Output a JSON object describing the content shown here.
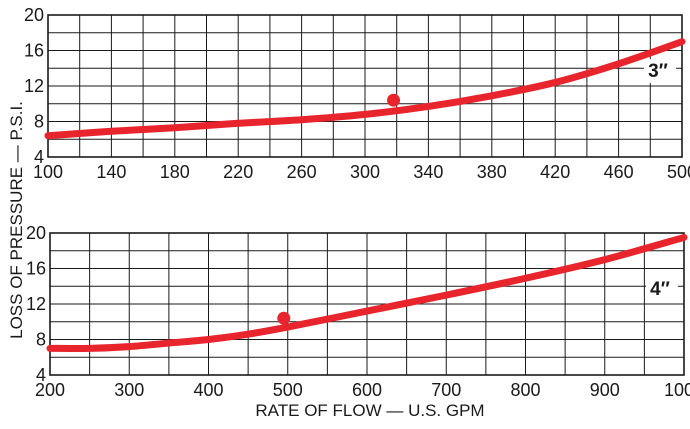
{
  "y_axis_label": "LOSS OF PRESSURE — P.S.I.",
  "x_axis_label": "RATE OF FLOW — U.S. GPM",
  "colors": {
    "curve": "#e8242c",
    "grid": "#1a1a1a",
    "text": "#1a1a1a",
    "background": "#ffffff"
  },
  "chart_data": [
    {
      "type": "line",
      "panel_label": "3″",
      "xlim": [
        100,
        500
      ],
      "ylim": [
        4,
        20
      ],
      "x_ticks": [
        100,
        140,
        180,
        220,
        260,
        300,
        340,
        380,
        420,
        460,
        500
      ],
      "y_ticks": [
        4,
        8,
        12,
        16,
        20
      ],
      "grid": true,
      "series": [
        {
          "x": [
            100,
            140,
            180,
            220,
            260,
            300,
            340,
            380,
            420,
            460,
            500
          ],
          "y": [
            6.4,
            6.9,
            7.3,
            7.8,
            8.2,
            8.8,
            9.7,
            10.9,
            12.4,
            14.5,
            17.0
          ]
        }
      ],
      "points": [
        {
          "x": 318,
          "y": 10.4
        }
      ]
    },
    {
      "type": "line",
      "panel_label": "4″",
      "xlim": [
        200,
        1000
      ],
      "ylim": [
        4,
        20
      ],
      "x_ticks": [
        200,
        300,
        400,
        500,
        600,
        700,
        800,
        900,
        1000
      ],
      "y_ticks": [
        4,
        8,
        12,
        16,
        20
      ],
      "grid": true,
      "series": [
        {
          "x": [
            200,
            250,
            300,
            350,
            400,
            450,
            500,
            600,
            700,
            800,
            900,
            1000
          ],
          "y": [
            7.0,
            7.0,
            7.2,
            7.6,
            8.0,
            8.6,
            9.4,
            11.2,
            13.0,
            14.9,
            17.0,
            19.5
          ]
        }
      ],
      "points": [
        {
          "x": 495,
          "y": 10.4
        }
      ]
    }
  ]
}
